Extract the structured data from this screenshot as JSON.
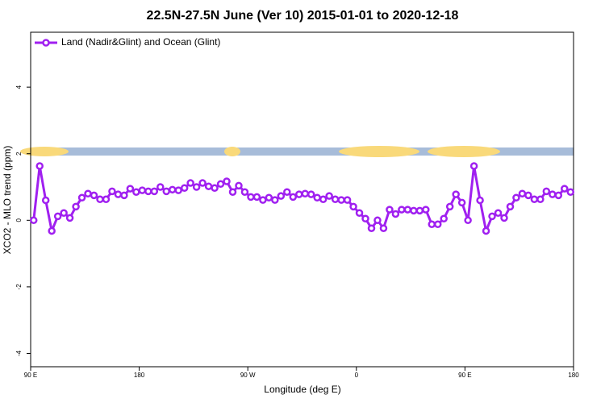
{
  "chart_data": {
    "type": "line",
    "title": "22.5N-27.5N June (Ver 10)   2015-01-01 to 2020-12-18",
    "x_label": "Longitude (deg E)",
    "y_label": "XCO2 - MLO trend (ppm)",
    "legend": "top-left",
    "xlim": [
      90,
      540
    ],
    "ylim": [
      -4.4,
      5.65
    ],
    "xticks": [
      {
        "value": 90,
        "label": "90 E"
      },
      180,
      {
        "value": 270,
        "label": "90 W"
      },
      {
        "value": 360,
        "label": "0"
      },
      {
        "value": 450,
        "label": "90 E"
      },
      {
        "value": 540,
        "label": "180"
      }
    ],
    "yticks": [
      -4,
      -2,
      0,
      2,
      4
    ],
    "x": [
      92.5,
      97.5,
      102.5,
      107.5,
      112.5,
      117.5,
      122.5,
      127.5,
      132.5,
      137.5,
      142.5,
      147.5,
      152.5,
      157.5,
      162.5,
      167.5,
      172.5,
      177.5,
      182.5,
      187.5,
      192.5,
      197.5,
      202.5,
      207.5,
      212.5,
      217.5,
      222.5,
      227.5,
      232.5,
      237.5,
      242.5,
      247.5,
      252.5,
      257.5,
      262.5,
      267.5,
      272.5,
      277.5,
      282.5,
      287.5,
      292.5,
      297.5,
      302.5,
      307.5,
      312.5,
      317.5,
      322.5,
      327.5,
      332.5,
      337.5,
      342.5,
      347.5,
      352.5,
      357.5,
      362.5,
      367.5,
      372.5,
      377.5,
      382.5,
      387.5,
      392.5,
      397.5,
      402.5,
      407.5,
      412.5,
      417.5,
      422.5,
      427.5,
      432.5,
      437.5,
      442.5,
      447.5,
      452.5,
      457.5,
      462.5,
      467.5,
      472.5,
      477.5,
      482.5,
      487.5,
      492.5,
      497.5,
      502.5,
      507.5,
      512.5,
      517.5,
      522.5,
      527.5,
      532.5,
      537.5
    ],
    "series": [
      {
        "name": "Land (Nadir&Glint) and Ocean (Glint)",
        "color": "#a020f0",
        "values": [
          0,
          1.63,
          0.6,
          -0.32,
          0.12,
          0.22,
          0.07,
          0.41,
          0.68,
          0.8,
          0.75,
          0.63,
          0.63,
          0.87,
          0.78,
          0.75,
          0.95,
          0.85,
          0.9,
          0.87,
          0.87,
          1.0,
          0.87,
          0.92,
          0.9,
          0.97,
          1.12,
          1.0,
          1.12,
          1.02,
          0.97,
          1.09,
          1.17,
          0.85,
          1.04,
          0.85,
          0.7,
          0.7,
          0.61,
          0.68,
          0.61,
          0.73,
          0.85,
          0.7,
          0.78,
          0.8,
          0.78,
          0.68,
          0.63,
          0.73,
          0.63,
          0.61,
          0.61,
          0.41,
          0.22,
          0.05,
          -0.24,
          0,
          -0.24,
          0.32,
          0.19,
          0.32,
          0.32,
          0.29,
          0.29,
          0.32,
          -0.12,
          -0.12,
          0.05,
          0.41,
          0.78,
          0.53,
          0,
          1.63,
          0.6,
          -0.32,
          0.12,
          0.22,
          0.07,
          0.41,
          0.68,
          0.8,
          0.75,
          0.63,
          0.63,
          0.87,
          0.78,
          0.75,
          0.95,
          0.85
        ]
      }
    ]
  }
}
